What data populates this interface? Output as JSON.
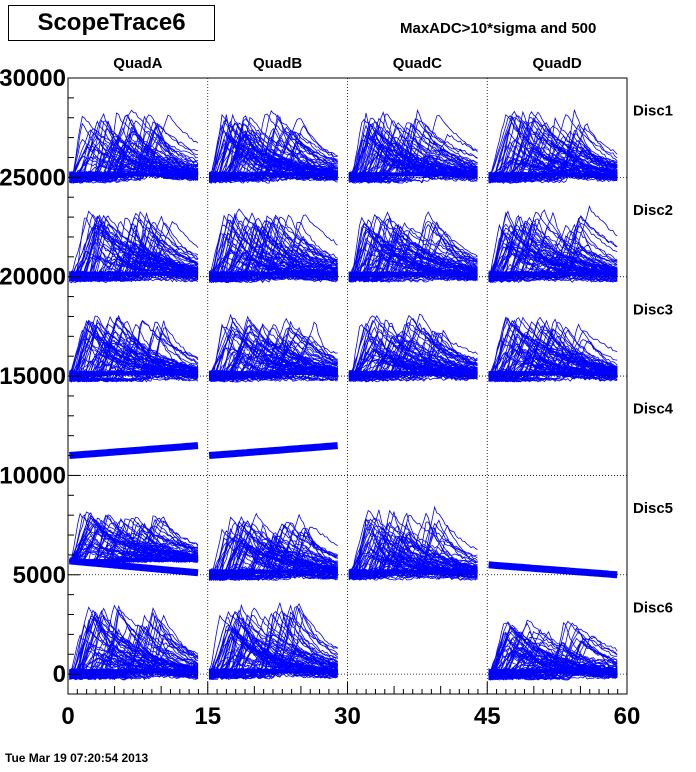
{
  "title": "ScopeTrace6",
  "subtitle": "MaxADC>10*sigma and  500",
  "datestamp": "Tue Mar 19 07:20:54 2013",
  "colors": {
    "trace": "#0000ff",
    "axis": "#000000",
    "grid": "#000000",
    "background": "#ffffff"
  },
  "chart_data": {
    "type": "line",
    "title": "ScopeTrace6",
    "xlim": [
      0,
      60
    ],
    "ylim": [
      -1000,
      30000
    ],
    "x_ticks": [
      "0",
      "15",
      "30",
      "45",
      "60"
    ],
    "y_ticks": [
      "0",
      "5000",
      "10000",
      "15000",
      "20000",
      "25000",
      "30000"
    ],
    "grid": "dotted at x = 15, 30, 45 and at y = 0, 5000, 10000, 15000, 20000, 25000",
    "columns": [
      "QuadA",
      "QuadB",
      "QuadC",
      "QuadD"
    ],
    "rows": [
      "Disc1",
      "Disc2",
      "Disc3",
      "Disc4",
      "Disc5",
      "Disc6"
    ],
    "row_offsets": [
      25000,
      20000,
      15000,
      10000,
      5000,
      0
    ],
    "cells": {
      "Disc1": {
        "QuadA": {
          "pulse": 3300,
          "band": 450
        },
        "QuadB": {
          "pulse": 3300,
          "band": 450
        },
        "QuadC": {
          "pulse": 3400,
          "band": 450
        },
        "QuadD": {
          "pulse": 3300,
          "band": 450
        }
      },
      "Disc2": {
        "QuadA": {
          "pulse": 3300,
          "band": 450
        },
        "QuadB": {
          "pulse": 3300,
          "band": 450
        },
        "QuadC": {
          "pulse": 3200,
          "band": 400
        },
        "QuadD": {
          "pulse": 3300,
          "band": 450
        }
      },
      "Disc3": {
        "QuadA": {
          "pulse": 3200,
          "band": 450
        },
        "QuadB": {
          "pulse": 2900,
          "band": 450
        },
        "QuadC": {
          "pulse": 3100,
          "band": 450
        },
        "QuadD": {
          "pulse": 3000,
          "band": 450
        }
      },
      "Disc4": {
        "QuadA": {
          "baseline_start": 11000,
          "baseline_end": 11500
        },
        "QuadB": {
          "baseline_start": 11000,
          "baseline_end": 11500
        },
        "QuadC": null,
        "QuadD": null
      },
      "Disc5": {
        "QuadA": {
          "pulse": 2500,
          "baseline_start": 5700,
          "baseline_end": 5100
        },
        "QuadB": {
          "pulse": 3000,
          "band": 450
        },
        "QuadC": {
          "pulse": 3200,
          "band": 450
        },
        "QuadD": {
          "baseline_start": 5500,
          "baseline_end": 5000
        }
      },
      "Disc6": {
        "QuadA": {
          "pulse": 3400,
          "band": 450
        },
        "QuadB": {
          "pulse": 3500,
          "band": 450
        },
        "QuadC": null,
        "QuadD": {
          "pulse": 2700,
          "band": 450
        }
      }
    }
  }
}
